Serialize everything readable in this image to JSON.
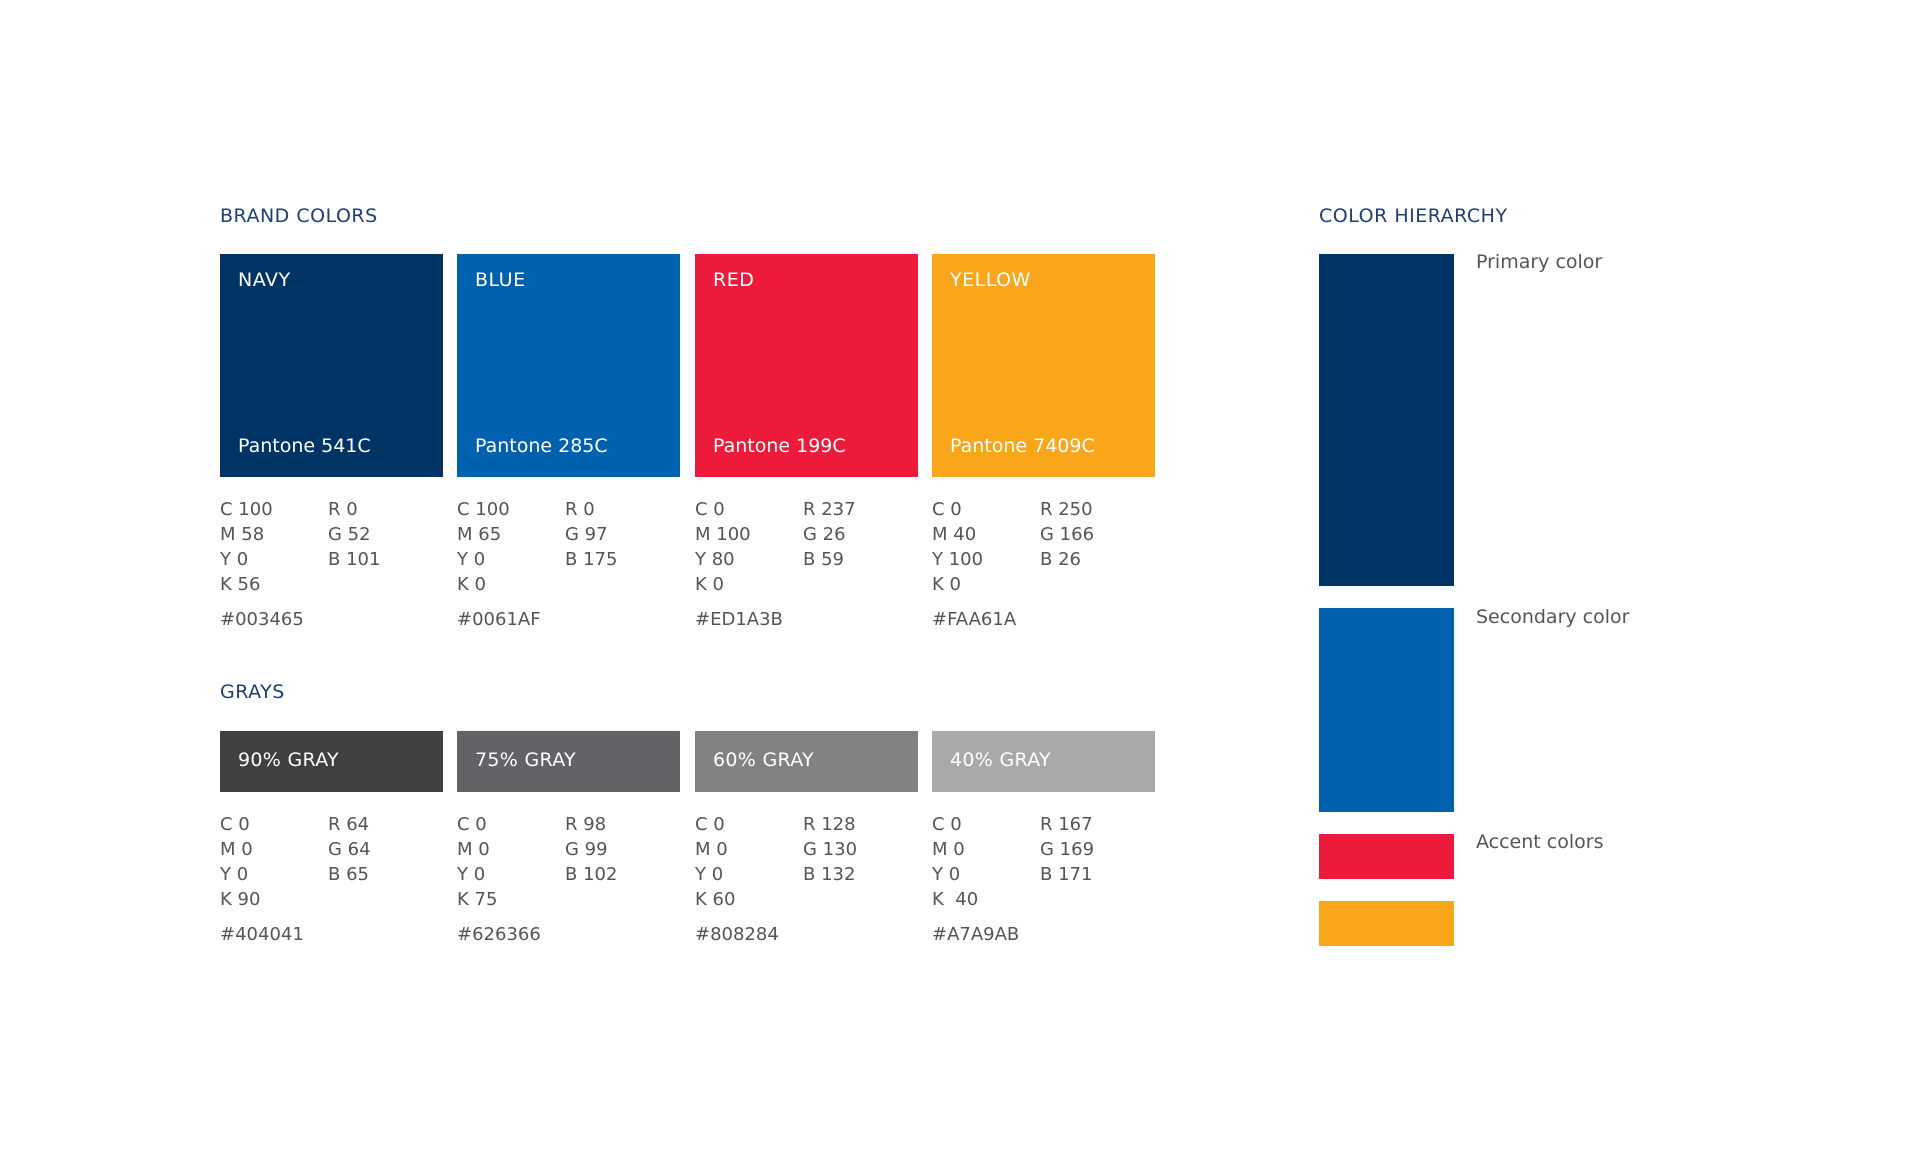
{
  "brand": {
    "title": "BRAND COLORS",
    "colors": [
      {
        "name": "NAVY",
        "pantone": "Pantone 541C",
        "hex_color": "#003465",
        "cmyk": [
          "C 100",
          "M 58",
          "Y 0",
          "K 56"
        ],
        "rgb": [
          "R 0",
          "G 52",
          "B 101"
        ],
        "hex": "#003465"
      },
      {
        "name": "BLUE",
        "pantone": "Pantone 285C",
        "hex_color": "#0061AF",
        "cmyk": [
          "C 100",
          "M 65",
          "Y 0",
          "K 0"
        ],
        "rgb": [
          "R 0",
          "G 97",
          "B 175"
        ],
        "hex": "#0061AF"
      },
      {
        "name": "RED",
        "pantone": "Pantone 199C",
        "hex_color": "#ED1A3B",
        "cmyk": [
          "C 0",
          "M 100",
          "Y 80",
          "K 0"
        ],
        "rgb": [
          "R 237",
          "G 26",
          "B 59"
        ],
        "hex": "#ED1A3B"
      },
      {
        "name": "YELLOW",
        "pantone": "Pantone 7409C",
        "hex_color": "#FAA61A",
        "cmyk": [
          "C 0",
          "M 40",
          "Y 100",
          "K 0"
        ],
        "rgb": [
          "R 250",
          "G 166",
          "B 26"
        ],
        "hex": "#FAA61A"
      }
    ]
  },
  "grays": {
    "title": "GRAYS",
    "colors": [
      {
        "name": "90% GRAY",
        "hex_color": "#404041",
        "cmyk": [
          "C 0",
          "M 0",
          "Y 0",
          "K 90"
        ],
        "rgb": [
          "R 64",
          "G 64",
          "B 65"
        ],
        "hex": "#404041"
      },
      {
        "name": "75% GRAY",
        "hex_color": "#626366",
        "cmyk": [
          "C 0",
          "M 0",
          "Y 0",
          "K 75"
        ],
        "rgb": [
          "R 98",
          "G 99",
          "B 102"
        ],
        "hex": "#626366"
      },
      {
        "name": "60% GRAY",
        "hex_color": "#808284",
        "cmyk": [
          "C 0",
          "M 0",
          "Y 0",
          "K 60"
        ],
        "rgb": [
          "R 128",
          "G 130",
          "B 132"
        ],
        "hex": "#808284"
      },
      {
        "name": "40% GRAY",
        "hex_color": "#A7A9AB",
        "cmyk": [
          "C 0",
          "M 0",
          "Y 0",
          "K  40"
        ],
        "rgb": [
          "R 167",
          "G 169",
          "B 171"
        ],
        "hex": "#A7A9AB"
      }
    ]
  },
  "hierarchy": {
    "title": "COLOR HIERARCHY",
    "primary_label": "Primary color",
    "secondary_label": "Secondary color",
    "accent_label": "Accent colors",
    "primary_color": "#003465",
    "secondary_color": "#0061AF",
    "accent_color_1": "#ED1A3B",
    "accent_color_2": "#FAA61A"
  }
}
